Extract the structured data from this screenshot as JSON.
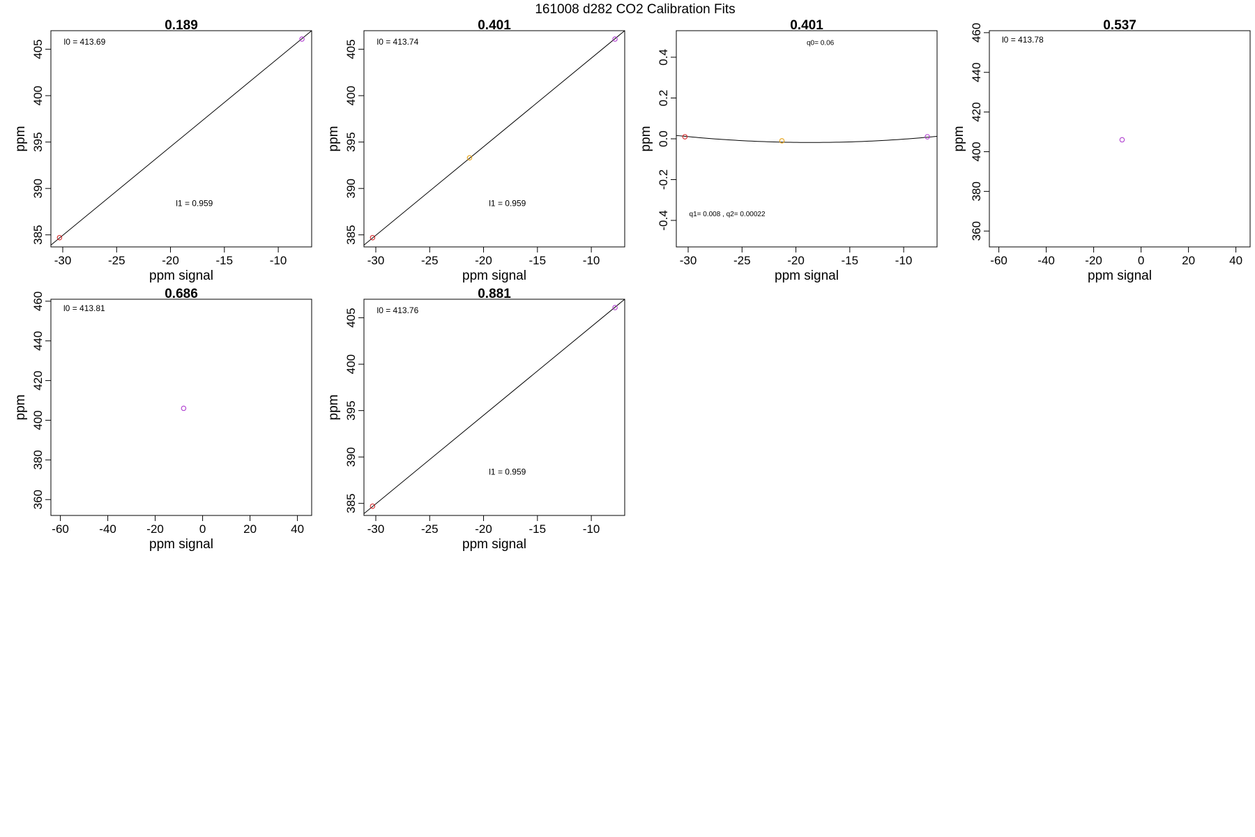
{
  "figure_title": "161008   d282   CO2 Calibration Fits",
  "colors": {
    "red": "#d62728",
    "orange": "#e8a317",
    "purple": "#b040d0"
  },
  "chart_data": [
    {
      "type": "scatter",
      "title": "0.189",
      "xlabel": "ppm signal",
      "ylabel": "ppm",
      "xlim": [
        -31.1,
        -6.9
      ],
      "ylim": [
        383.7,
        407.0
      ],
      "xticks": [
        -30,
        -25,
        -20,
        -15,
        -10
      ],
      "yticks": [
        385,
        390,
        395,
        400,
        405
      ],
      "points": [
        {
          "x": -30.3,
          "y": 384.7,
          "color": "red"
        },
        {
          "x": -7.8,
          "y": 406.1,
          "color": "purple"
        }
      ],
      "fit": {
        "type": "linear",
        "from": [
          -31.1,
          383.9
        ],
        "to": [
          -6.9,
          407.0
        ]
      },
      "annotations": [
        {
          "text": "l0 =  413.69",
          "x": -29.9,
          "y": 405.5
        },
        {
          "text": "l1 =  0.959",
          "x": -19.5,
          "y": 388.1
        }
      ]
    },
    {
      "type": "scatter",
      "title": "0.401",
      "xlabel": "ppm signal",
      "ylabel": "ppm",
      "xlim": [
        -31.1,
        -6.9
      ],
      "ylim": [
        383.7,
        407.0
      ],
      "xticks": [
        -30,
        -25,
        -20,
        -15,
        -10
      ],
      "yticks": [
        385,
        390,
        395,
        400,
        405
      ],
      "points": [
        {
          "x": -30.3,
          "y": 384.7,
          "color": "red"
        },
        {
          "x": -21.3,
          "y": 393.3,
          "color": "orange"
        },
        {
          "x": -7.8,
          "y": 406.1,
          "color": "purple"
        }
      ],
      "fit": {
        "type": "linear",
        "from": [
          -31.1,
          383.9
        ],
        "to": [
          -6.9,
          407.0
        ]
      },
      "annotations": [
        {
          "text": "l0 =  413.74",
          "x": -29.9,
          "y": 405.5
        },
        {
          "text": "l1 =  0.959",
          "x": -19.5,
          "y": 388.1
        }
      ]
    },
    {
      "type": "scatter",
      "title": "0.401",
      "xlabel": "ppm signal",
      "ylabel": "ppm",
      "xlim": [
        -31.1,
        -6.9
      ],
      "ylim": [
        -0.53,
        0.53
      ],
      "xticks": [
        -30,
        -25,
        -20,
        -15,
        -10
      ],
      "yticks": [
        -0.4,
        -0.2,
        0.0,
        0.2,
        0.4
      ],
      "ytick_labels": [
        "-0.4",
        "-0.2",
        "0.0",
        "0.2",
        "0.4"
      ],
      "points": [
        {
          "x": -30.3,
          "y": 0.01,
          "color": "red"
        },
        {
          "x": -21.3,
          "y": -0.01,
          "color": "orange"
        },
        {
          "x": -7.8,
          "y": 0.01,
          "color": "purple"
        }
      ],
      "fit": {
        "type": "quadratic",
        "vertex_x": -18.6,
        "vertex_y": -0.018,
        "curvature": 0.00022
      },
      "annotations": [
        {
          "text": "q0= 0.06",
          "x": -19.0,
          "y": 0.46,
          "size": "small"
        },
        {
          "text": "q1= 0.008 , q2= 0.00022",
          "x": -29.9,
          "y": -0.38,
          "size": "small"
        }
      ]
    },
    {
      "type": "scatter",
      "title": "0.537",
      "xlabel": "ppm signal",
      "ylabel": "ppm",
      "xlim": [
        -64,
        46
      ],
      "ylim": [
        352,
        461
      ],
      "xticks": [
        -60,
        -40,
        -20,
        0,
        20,
        40
      ],
      "yticks": [
        360,
        380,
        400,
        420,
        440,
        460
      ],
      "points": [
        {
          "x": -8.0,
          "y": 406.0,
          "color": "purple"
        }
      ],
      "annotations": [
        {
          "text": "l0 =  413.78",
          "x": -58.7,
          "y": 455.0
        }
      ]
    },
    {
      "type": "scatter",
      "title": "0.686",
      "xlabel": "ppm signal",
      "ylabel": "ppm",
      "xlim": [
        -64,
        46
      ],
      "ylim": [
        352,
        461
      ],
      "xticks": [
        -60,
        -40,
        -20,
        0,
        20,
        40
      ],
      "yticks": [
        360,
        380,
        400,
        420,
        440,
        460
      ],
      "points": [
        {
          "x": -8.0,
          "y": 406.0,
          "color": "purple"
        }
      ],
      "annotations": [
        {
          "text": "l0 =  413.81",
          "x": -58.7,
          "y": 455.0
        }
      ]
    },
    {
      "type": "scatter",
      "title": "0.881",
      "xlabel": "ppm signal",
      "ylabel": "ppm",
      "xlim": [
        -31.1,
        -6.9
      ],
      "ylim": [
        383.7,
        407.0
      ],
      "xticks": [
        -30,
        -25,
        -20,
        -15,
        -10
      ],
      "yticks": [
        385,
        390,
        395,
        400,
        405
      ],
      "points": [
        {
          "x": -30.3,
          "y": 384.7,
          "color": "red"
        },
        {
          "x": -7.8,
          "y": 406.1,
          "color": "purple"
        }
      ],
      "fit": {
        "type": "linear",
        "from": [
          -31.1,
          383.9
        ],
        "to": [
          -6.9,
          407.0
        ]
      },
      "annotations": [
        {
          "text": "l0 =  413.76",
          "x": -29.9,
          "y": 405.5
        },
        {
          "text": "l1 =  0.959",
          "x": -19.5,
          "y": 388.1
        }
      ]
    }
  ]
}
